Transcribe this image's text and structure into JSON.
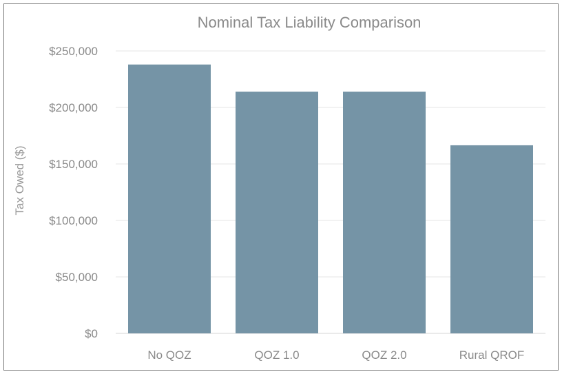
{
  "chart_data": {
    "type": "bar",
    "title": "Nominal Tax Liability Comparison",
    "xlabel": "",
    "ylabel": "Tax Owed ($)",
    "categories": [
      "No QOZ",
      "QOZ 1.0",
      "QOZ 2.0",
      "Rural QROF"
    ],
    "values": [
      238000,
      214000,
      214000,
      166500
    ],
    "ylim": [
      0,
      250000
    ],
    "yticks": [
      0,
      50000,
      100000,
      150000,
      200000,
      250000
    ],
    "ytick_labels": [
      "$0",
      "$50,000",
      "$100,000",
      "$150,000",
      "$200,000",
      "$250,000"
    ],
    "bar_color": "#7594a6",
    "grid": true,
    "legend": "none"
  }
}
